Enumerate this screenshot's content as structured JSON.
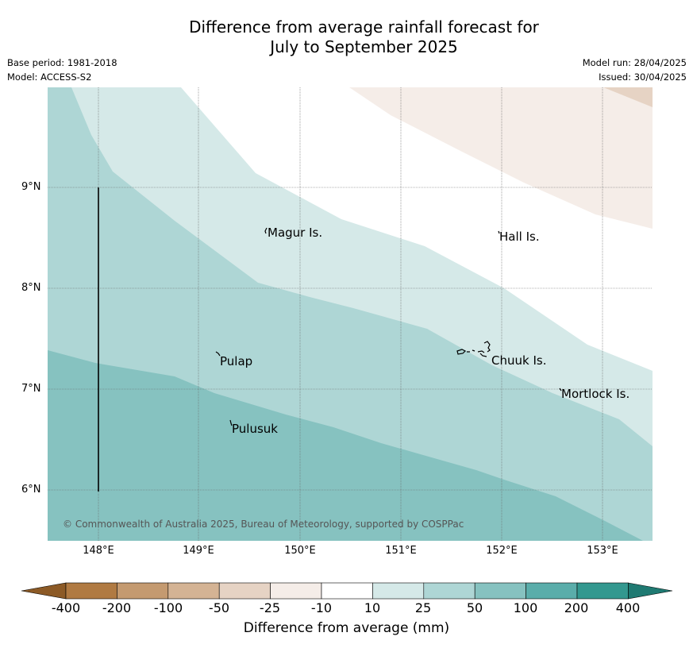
{
  "title_line1": "Difference from average rainfall forecast for",
  "title_line2": "July to September 2025",
  "meta": {
    "base_period": "Base period: 1981-2018",
    "model": "Model: ACCESS-S2",
    "model_run": "Model run: 28/04/2025",
    "issued": "Issued: 30/04/2025"
  },
  "axes": {
    "lat_labels": [
      "9°N",
      "8°N",
      "7°N",
      "6°N"
    ],
    "lon_labels": [
      "148°E",
      "149°E",
      "150°E",
      "151°E",
      "152°E",
      "153°E"
    ]
  },
  "places": {
    "magur": "Magur Is.",
    "hall": "Hall Is.",
    "pulap": "Pulap",
    "chuuk": "Chuuk Is.",
    "mortlock": "Mortlock Is.",
    "pulusuk": "Pulusuk"
  },
  "copyright": "© Commonwealth of Australia 2025, Bureau of Meteorology, supported by COSPPac",
  "colorbar": {
    "label": "Difference from average (mm)",
    "ticks": [
      "-400",
      "-200",
      "-100",
      "-50",
      "-25",
      "-10",
      "10",
      "25",
      "50",
      "100",
      "200",
      "400"
    ],
    "colors": [
      "#8c5a26",
      "#b07a42",
      "#c49a70",
      "#d4b394",
      "#e6d3c4",
      "#f5ede8",
      "#ffffff",
      "#d5e9e8",
      "#aed6d5",
      "#86c2c0",
      "#5aadaa",
      "#33988f",
      "#1f7a72"
    ]
  }
}
